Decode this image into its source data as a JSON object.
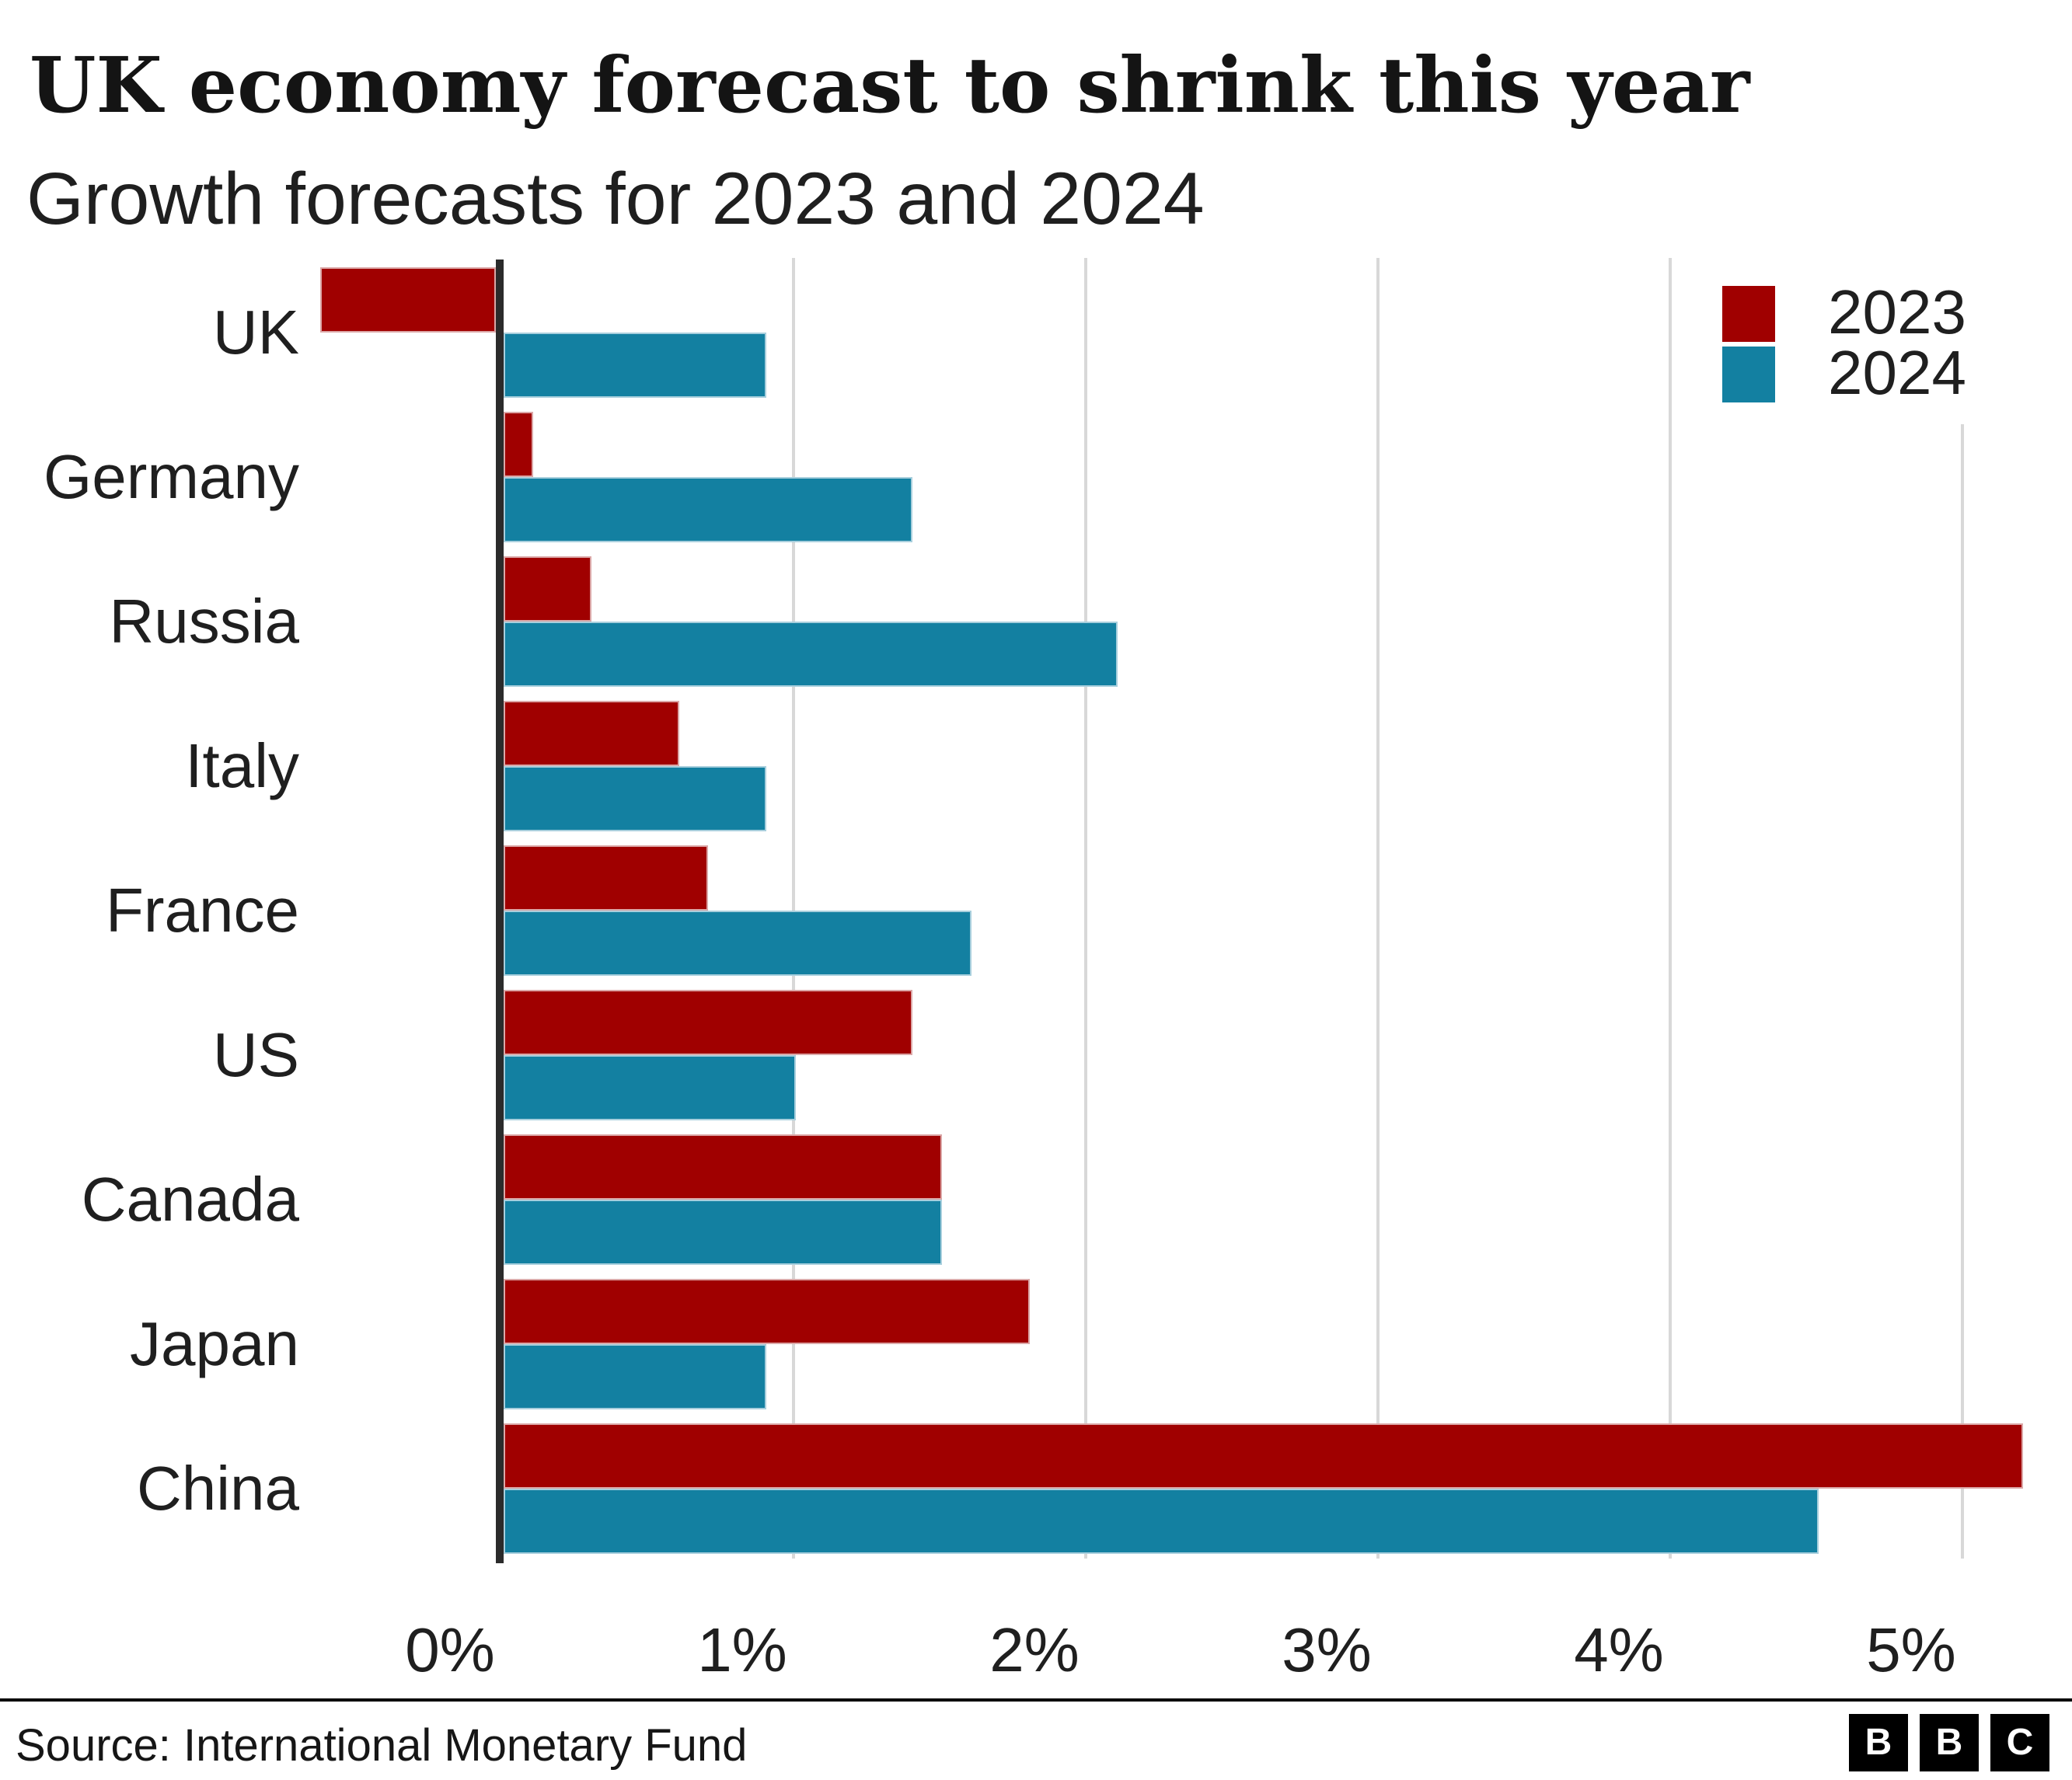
{
  "title": "UK economy forecast to shrink this year",
  "subtitle": "Growth forecasts for 2023 and 2024",
  "source": "Source: International Monetary Fund",
  "logo": {
    "letters": [
      "B",
      "B",
      "C"
    ]
  },
  "legend": [
    {
      "label": "2023",
      "color": "#a00000"
    },
    {
      "label": "2024",
      "color": "#1380a1"
    }
  ],
  "colors": {
    "red_2023": "#a00000",
    "blue_2024": "#1380a1",
    "gridline": "#d8d8d8",
    "axis": "#2b2b2b",
    "text": "#1f1f1f"
  },
  "chart_data": {
    "type": "bar",
    "orientation": "horizontal",
    "title": "UK economy forecast to shrink this year",
    "subtitle": "Growth forecasts for 2023 and 2024",
    "categories": [
      "UK",
      "Germany",
      "Russia",
      "Italy",
      "France",
      "US",
      "Canada",
      "Japan",
      "China"
    ],
    "series": [
      {
        "name": "2023",
        "color": "#a00000",
        "values": [
          -0.6,
          0.1,
          0.3,
          0.6,
          0.7,
          1.4,
          1.5,
          1.8,
          5.2
        ]
      },
      {
        "name": "2024",
        "color": "#1380a1",
        "values": [
          0.9,
          1.4,
          2.1,
          0.9,
          1.6,
          1.0,
          1.5,
          0.9,
          4.5
        ]
      }
    ],
    "x_ticks": [
      "0%",
      "1%",
      "2%",
      "3%",
      "4%",
      "5%"
    ],
    "x_tick_values": [
      0,
      1,
      2,
      3,
      4,
      5
    ],
    "xlim": [
      -0.65,
      5.4
    ],
    "unit": "percent",
    "grid": true,
    "legend_position": "top-right"
  }
}
